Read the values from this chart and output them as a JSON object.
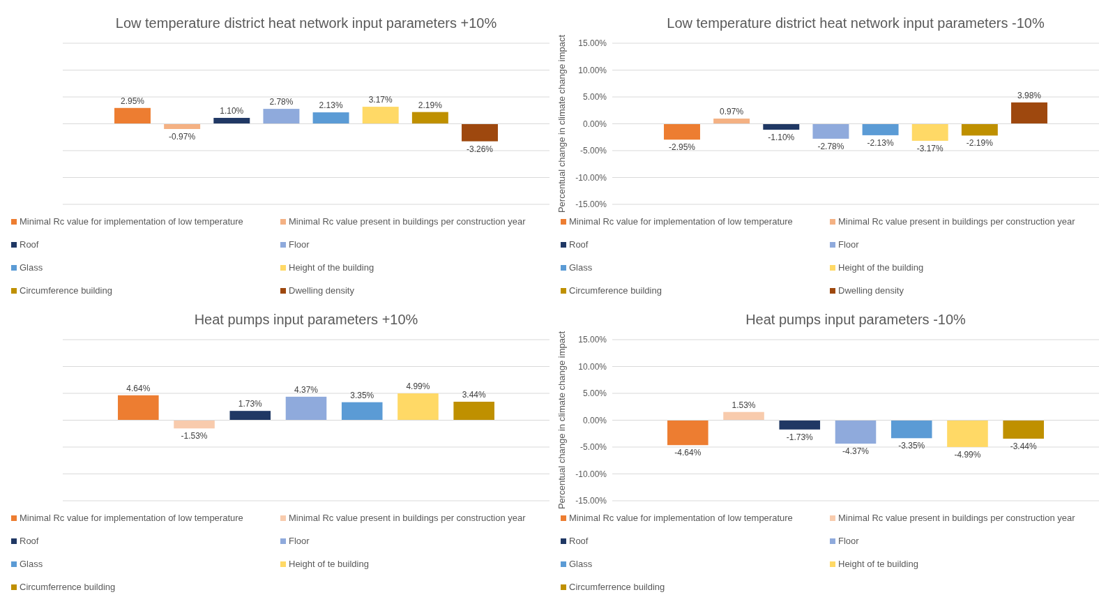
{
  "chart_data": [
    {
      "type": "bar",
      "title": "Low temperature district heat network input parameters +10%",
      "categories": [
        null
      ],
      "ylim": [
        -15,
        15
      ],
      "yticks": [
        -15,
        -10,
        -5,
        0,
        5,
        10,
        15
      ],
      "tick_labels": false,
      "grid": "y",
      "legend": "bottom",
      "series": [
        {
          "name": "Minimal Rc value for implementation of low temperature",
          "color": "#ed7d31",
          "values": [
            2.95
          ],
          "value_labels": [
            "2.95%"
          ]
        },
        {
          "name": "Minimal Rc value present in buildings per construction year",
          "color": "#f4b183",
          "values": [
            -0.97
          ],
          "value_labels": [
            "-0.97%"
          ]
        },
        {
          "name": "Roof",
          "color": "#203864",
          "values": [
            1.1
          ],
          "value_labels": [
            "1.10%"
          ]
        },
        {
          "name": "Floor",
          "color": "#8faadc",
          "values": [
            2.78
          ],
          "value_labels": [
            "2.78%"
          ]
        },
        {
          "name": "Glass",
          "color": "#5b9bd5",
          "values": [
            2.13
          ],
          "value_labels": [
            "2.13%"
          ]
        },
        {
          "name": "Height of the building",
          "color": "#ffd966",
          "values": [
            3.17
          ],
          "value_labels": [
            "3.17%"
          ]
        },
        {
          "name": "Circumference building",
          "color": "#bf9000",
          "values": [
            2.19
          ],
          "value_labels": [
            "2.19%"
          ]
        },
        {
          "name": "Dwelling density",
          "color": "#9e480e",
          "values": [
            -3.26
          ],
          "value_labels": [
            "-3.26%"
          ]
        }
      ]
    },
    {
      "type": "bar",
      "title": "Low temperature district heat network input parameters -10%",
      "ylabel": "Percentual change in climate change impact",
      "categories": [
        null
      ],
      "ylim": [
        -15,
        15
      ],
      "yticks": [
        {
          "value": -15,
          "label": "-15.00%"
        },
        {
          "value": -10,
          "label": "-10.00%"
        },
        {
          "value": -5,
          "label": "-5.00%"
        },
        {
          "value": 0,
          "label": "0.00%"
        },
        {
          "value": 5,
          "label": "5.00%"
        },
        {
          "value": 10,
          "label": "10.00%"
        },
        {
          "value": 15,
          "label": "15.00%"
        }
      ],
      "grid": "y",
      "legend": "bottom",
      "series": [
        {
          "name": "Minimal Rc value for implementation of low temperature",
          "color": "#ed7d31",
          "values": [
            -2.95
          ],
          "value_labels": [
            "-2.95%"
          ]
        },
        {
          "name": "Minimal Rc value present in buildings per construction year",
          "color": "#f4b183",
          "values": [
            0.97
          ],
          "value_labels": [
            "0.97%"
          ]
        },
        {
          "name": "Roof",
          "color": "#203864",
          "values": [
            -1.1
          ],
          "value_labels": [
            "-1.10%"
          ]
        },
        {
          "name": "Floor",
          "color": "#8faadc",
          "values": [
            -2.78
          ],
          "value_labels": [
            "-2.78%"
          ]
        },
        {
          "name": "Glass",
          "color": "#5b9bd5",
          "values": [
            -2.13
          ],
          "value_labels": [
            "-2.13%"
          ]
        },
        {
          "name": "Height of the building",
          "color": "#ffd966",
          "values": [
            -3.17
          ],
          "value_labels": [
            "-3.17%"
          ]
        },
        {
          "name": "Circumference building",
          "color": "#bf9000",
          "values": [
            -2.19
          ],
          "value_labels": [
            "-2.19%"
          ]
        },
        {
          "name": "Dwelling density",
          "color": "#9e480e",
          "values": [
            3.98
          ],
          "value_labels": [
            "3.98%"
          ]
        }
      ]
    },
    {
      "type": "bar",
      "title": "Heat pumps input parameters +10%",
      "categories": [
        null
      ],
      "ylim": [
        -15,
        15
      ],
      "yticks": [
        -15,
        -10,
        -5,
        0,
        5,
        10,
        15
      ],
      "tick_labels": false,
      "grid": "y",
      "legend": "bottom",
      "series": [
        {
          "name": "Minimal Rc value for implementation of low temperature",
          "color": "#ed7d31",
          "values": [
            4.64
          ],
          "value_labels": [
            "4.64%"
          ]
        },
        {
          "name": "Minimal Rc value present in buildings per construction year",
          "color": "#f8cbad",
          "values": [
            -1.53
          ],
          "value_labels": [
            "-1.53%"
          ]
        },
        {
          "name": "Roof",
          "color": "#203864",
          "values": [
            1.73
          ],
          "value_labels": [
            "1.73%"
          ]
        },
        {
          "name": "Floor",
          "color": "#8faadc",
          "values": [
            4.37
          ],
          "value_labels": [
            "4.37%"
          ]
        },
        {
          "name": "Glass",
          "color": "#5b9bd5",
          "values": [
            3.35
          ],
          "value_labels": [
            "3.35%"
          ]
        },
        {
          "name": "Height of te building",
          "color": "#ffd966",
          "values": [
            4.99
          ],
          "value_labels": [
            "4.99%"
          ]
        },
        {
          "name": "Circumferrence building",
          "color": "#bf9000",
          "values": [
            3.44
          ],
          "value_labels": [
            "3.44%"
          ]
        }
      ]
    },
    {
      "type": "bar",
      "title": "Heat pumps input parameters -10%",
      "ylabel": "Percentual change in climate change impact",
      "categories": [
        null
      ],
      "ylim": [
        -15,
        15
      ],
      "yticks": [
        {
          "value": -15,
          "label": "-15.00%"
        },
        {
          "value": -10,
          "label": "-10.00%"
        },
        {
          "value": -5,
          "label": "-5.00%"
        },
        {
          "value": 0,
          "label": "0.00%"
        },
        {
          "value": 5,
          "label": "5.00%"
        },
        {
          "value": 10,
          "label": "10.00%"
        },
        {
          "value": 15,
          "label": "15.00%"
        }
      ],
      "grid": "y",
      "legend": "bottom",
      "series": [
        {
          "name": "Minimal Rc value for implementation of low temperature",
          "color": "#ed7d31",
          "values": [
            -4.64
          ],
          "value_labels": [
            "-4.64%"
          ]
        },
        {
          "name": "Minimal Rc value present in buildings per construction year",
          "color": "#f8cbad",
          "values": [
            1.53
          ],
          "value_labels": [
            "1.53%"
          ]
        },
        {
          "name": "Roof",
          "color": "#203864",
          "values": [
            -1.73
          ],
          "value_labels": [
            "-1.73%"
          ]
        },
        {
          "name": "Floor",
          "color": "#8faadc",
          "values": [
            -4.37
          ],
          "value_labels": [
            "-4.37%"
          ]
        },
        {
          "name": "Glass",
          "color": "#5b9bd5",
          "values": [
            -3.35
          ],
          "value_labels": [
            "-3.35%"
          ]
        },
        {
          "name": "Height of te building",
          "color": "#ffd966",
          "values": [
            -4.99
          ],
          "value_labels": [
            "-4.99%"
          ]
        },
        {
          "name": "Circumferrence building",
          "color": "#bf9000",
          "values": [
            -3.44
          ],
          "value_labels": [
            "-3.44%"
          ]
        }
      ]
    }
  ]
}
